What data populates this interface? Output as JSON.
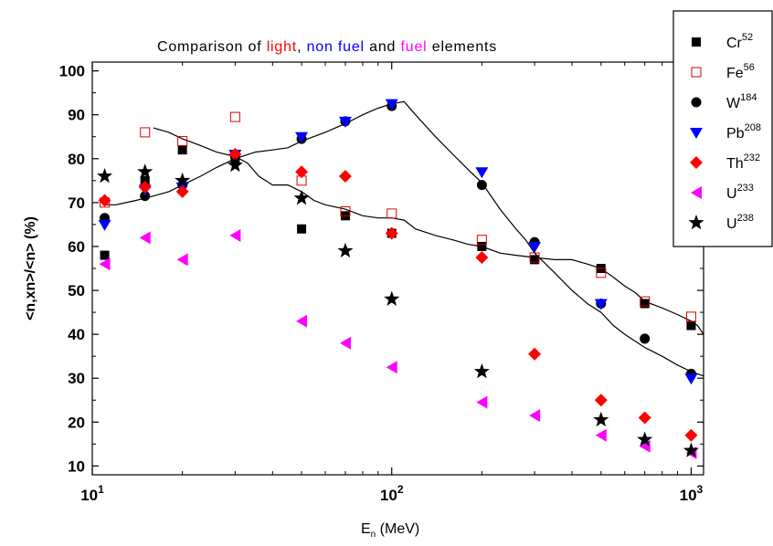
{
  "chart_data": {
    "type": "scatter",
    "title_parts": [
      {
        "text": "Comparison of ",
        "color": "#000000"
      },
      {
        "text": "light",
        "color": "#ff0000"
      },
      {
        "text": ", ",
        "color": "#000000"
      },
      {
        "text": "non fuel",
        "color": "#0000ff"
      },
      {
        "text": " and ",
        "color": "#000000"
      },
      {
        "text": "fuel",
        "color": "#ff00ff"
      },
      {
        "text": " elements",
        "color": "#000000"
      }
    ],
    "xlabel": {
      "main": "E",
      "sub": "n",
      "rest": " (MeV)"
    },
    "ylabel": "<n,xn>/<n> (%)",
    "x_scale": "log",
    "xlim": [
      10,
      1100
    ],
    "ylim": [
      8,
      102
    ],
    "x_ticks": [
      {
        "value": 10,
        "base": "10",
        "exp": "1"
      },
      {
        "value": 100,
        "base": "10",
        "exp": "2"
      },
      {
        "value": 1000,
        "base": "10",
        "exp": "3"
      }
    ],
    "y_ticks": [
      "10",
      "20",
      "30",
      "40",
      "50",
      "60",
      "70",
      "80",
      "90",
      "100"
    ],
    "grid": false,
    "legend_position": "top-right",
    "series": [
      {
        "name": "Cr",
        "sup": "52",
        "marker": "square",
        "color": "#000000",
        "x": [
          11,
          15,
          20,
          30,
          50,
          70,
          100,
          200,
          300,
          500,
          700,
          1000
        ],
        "y": [
          58,
          75,
          82,
          80,
          64,
          67,
          63,
          60,
          57,
          55,
          47,
          42
        ]
      },
      {
        "name": "Fe",
        "sup": "56",
        "marker": "square-open",
        "color": "#dd0000",
        "x": [
          11,
          15,
          20,
          30,
          50,
          70,
          100,
          200,
          300,
          500,
          700,
          1000
        ],
        "y": [
          70,
          86,
          84,
          89.5,
          75,
          68,
          67.5,
          61.5,
          57.5,
          54,
          47.5,
          44
        ]
      },
      {
        "name": "W",
        "sup": "184",
        "marker": "circle",
        "color": "#000000",
        "x": [
          11,
          15,
          20,
          30,
          50,
          70,
          100,
          200,
          300,
          500,
          700,
          1000
        ],
        "y": [
          66.5,
          71.5,
          74,
          80.5,
          84.5,
          88.5,
          92,
          74,
          61,
          47,
          39,
          31
        ]
      },
      {
        "name": "Pb",
        "sup": "208",
        "marker": "triangle-down",
        "color": "#0000ff",
        "x": [
          11,
          15,
          20,
          30,
          50,
          70,
          100,
          200,
          300,
          500,
          1000
        ],
        "y": [
          65,
          73,
          73.5,
          81,
          85,
          88.5,
          92.5,
          77,
          60,
          47,
          30
        ]
      },
      {
        "name": "Th",
        "sup": "232",
        "marker": "diamond",
        "color": "#ff0000",
        "x": [
          11,
          15,
          20,
          30,
          50,
          70,
          100,
          200,
          300,
          500,
          700,
          1000
        ],
        "y": [
          70.5,
          73.5,
          72.5,
          81,
          77,
          76,
          63,
          57.5,
          35.5,
          25,
          21,
          17
        ]
      },
      {
        "name": "U",
        "sup": "233",
        "marker": "triangle-left",
        "color": "#ff00ff",
        "x": [
          11,
          15,
          20,
          30,
          50,
          70,
          100,
          200,
          300,
          500,
          700,
          1000
        ],
        "y": [
          56,
          62,
          57,
          62.5,
          43,
          38,
          32.5,
          24.5,
          21.5,
          17,
          14.5,
          13
        ]
      },
      {
        "name": "U",
        "sup": "238",
        "marker": "star",
        "color": "#000000",
        "x": [
          11,
          15,
          20,
          30,
          50,
          70,
          100,
          200,
          500,
          700,
          1000
        ],
        "y": [
          76,
          77,
          75,
          78.5,
          71,
          59,
          48,
          31.5,
          20.5,
          16,
          13.5
        ]
      }
    ],
    "fit_lines": [
      {
        "x": [
          11,
          12,
          14,
          16,
          18,
          20,
          23,
          26,
          30,
          35,
          40,
          45,
          50,
          60,
          70,
          80,
          90,
          100,
          110,
          120,
          140,
          160,
          180,
          200,
          230,
          260,
          280,
          300,
          350,
          400,
          450,
          500,
          550,
          600,
          700,
          800,
          900,
          1000,
          1100
        ],
        "y": [
          69.5,
          69.5,
          70.5,
          71.5,
          72.5,
          74,
          76,
          78,
          80,
          81.5,
          82,
          82.5,
          84,
          86,
          88,
          90,
          91.5,
          92.5,
          93,
          90,
          85,
          81,
          77.5,
          74.5,
          68.5,
          64,
          61.5,
          58.5,
          54,
          50,
          47,
          45,
          42,
          40,
          37,
          35,
          33,
          31.5,
          30.5
        ]
      },
      {
        "x": [
          16,
          18,
          20,
          23,
          26,
          30,
          33,
          36,
          40,
          45,
          50,
          55,
          60,
          70,
          80,
          90,
          100,
          110,
          120,
          140,
          160,
          180,
          200,
          230,
          260,
          300,
          350,
          400,
          450,
          500,
          550,
          600,
          650,
          700,
          800,
          900,
          1000,
          1050,
          1100
        ],
        "y": [
          87,
          86,
          84.5,
          83,
          81.5,
          80.5,
          79,
          76,
          74,
          74,
          72.5,
          70.5,
          69.5,
          68.5,
          67,
          66.5,
          66.5,
          66,
          64,
          62.5,
          61.5,
          60.5,
          60,
          58.5,
          58,
          57.5,
          57,
          57,
          56,
          55,
          53,
          51,
          49.5,
          47.5,
          46,
          44.5,
          43,
          42,
          40
        ]
      }
    ]
  }
}
